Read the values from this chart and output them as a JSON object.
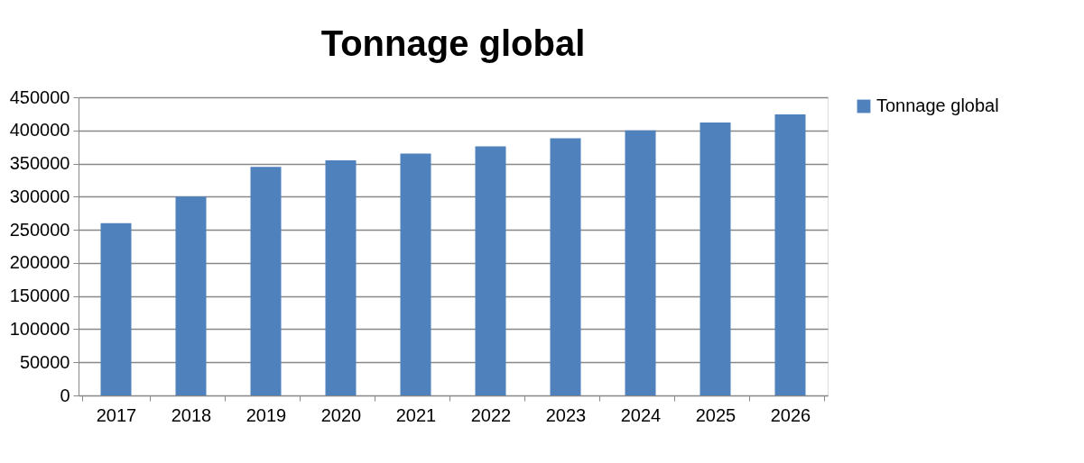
{
  "chart_data": {
    "type": "bar",
    "title": "Tonnage global",
    "categories": [
      "2017",
      "2018",
      "2019",
      "2020",
      "2021",
      "2022",
      "2023",
      "2024",
      "2025",
      "2026"
    ],
    "series": [
      {
        "name": "Tonnage global",
        "color": "#4f81bd",
        "values": [
          260000,
          300000,
          345000,
          355000,
          365000,
          376000,
          388000,
          400000,
          412000,
          424000
        ]
      }
    ],
    "ylim": [
      0,
      450000
    ],
    "yticks": [
      0,
      50000,
      100000,
      150000,
      200000,
      250000,
      300000,
      350000,
      400000,
      450000
    ],
    "grid": "y",
    "legend": "right"
  }
}
